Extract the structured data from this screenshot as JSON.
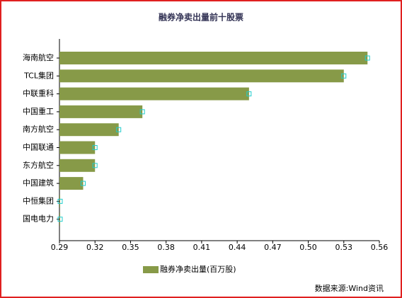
{
  "chart_data": {
    "type": "hbar",
    "title": "融券净卖出量前十股票",
    "categories": [
      "海南航空",
      "TCL集团",
      "中联重科",
      "中国重工",
      "南方航空",
      "中国联通",
      "东方航空",
      "中国建筑",
      "中恒集团",
      "国电电力"
    ],
    "series": [
      {
        "name": "融券净卖出量(百万股)",
        "color": "#879a48",
        "values": [
          0.55,
          0.53,
          0.45,
          0.36,
          0.34,
          0.32,
          0.32,
          0.31,
          0.29,
          0.29
        ]
      }
    ],
    "xlim": [
      0.29,
      0.56
    ],
    "xticks": [
      0.29,
      0.32,
      0.35,
      0.38,
      0.41,
      0.44,
      0.47,
      {
        "value": 0.5,
        "label": "0.50"
      },
      0.53,
      0.56
    ],
    "source": "数据来源:Wind资讯"
  }
}
